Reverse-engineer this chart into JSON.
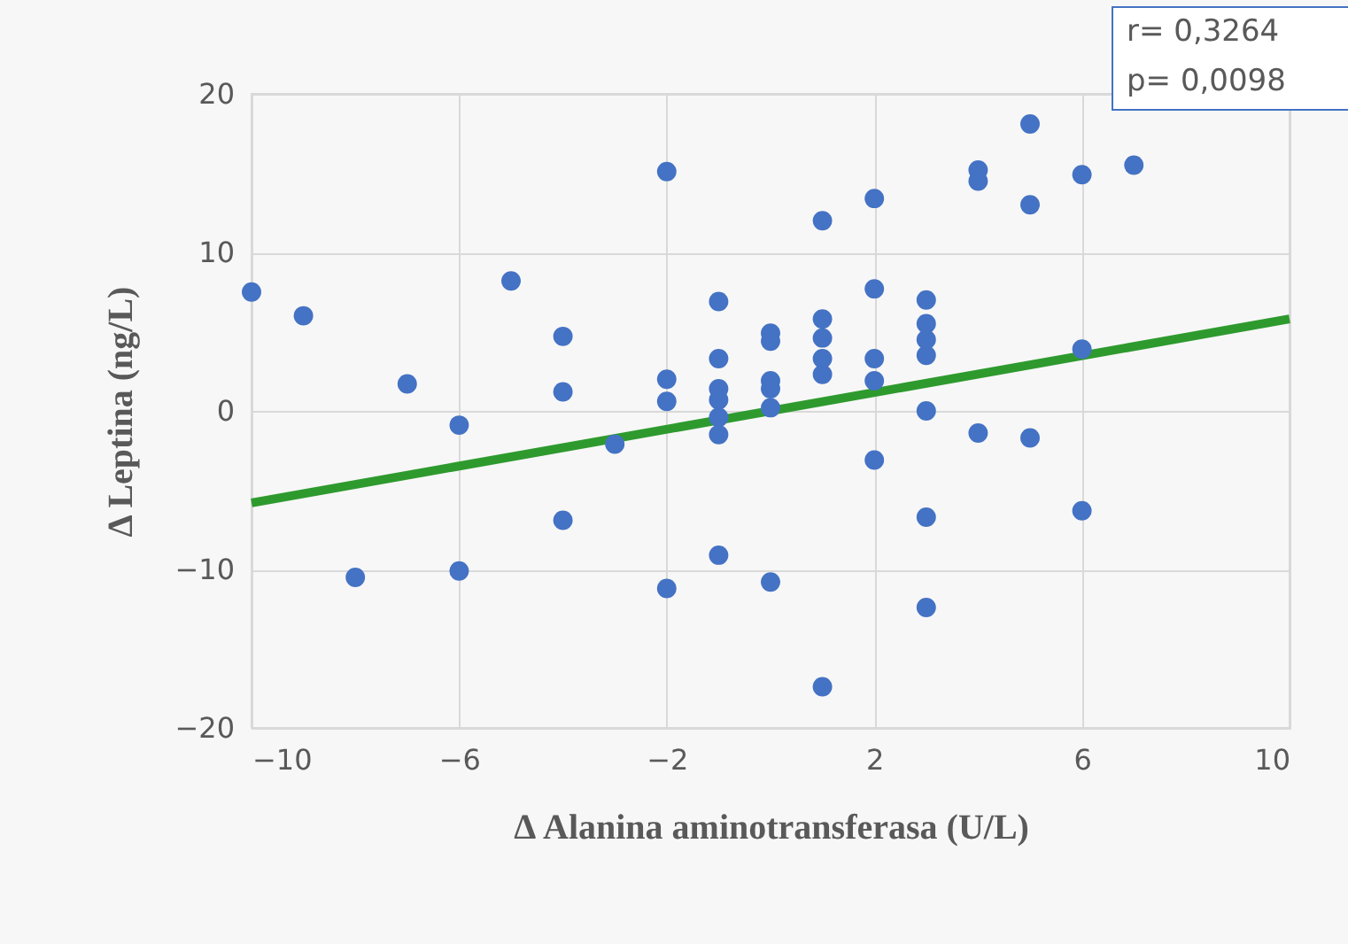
{
  "chart_data": {
    "type": "scatter",
    "xlabel": "Δ Alanina aminotransferasa (U/L)",
    "ylabel": "Δ Leptina (ng/L)",
    "xlim": [
      -10,
      10
    ],
    "xticks": [
      -10,
      -6,
      -2,
      2,
      6,
      10
    ],
    "ylim": [
      -20,
      20
    ],
    "yticks": [
      -20,
      -10,
      0,
      10,
      20
    ],
    "grid": true,
    "marker": "circle",
    "annotations": [
      "r= 0,3264",
      "p= 0,0098"
    ],
    "series": [
      {
        "color": "#4472c4",
        "x": [
          -10,
          -9,
          -7,
          -6,
          -5,
          -4,
          -4,
          -4,
          -3,
          -8,
          -6,
          -2,
          -2,
          -2,
          -2,
          -1,
          -1,
          -1,
          -1,
          -1,
          -1,
          -1,
          0,
          0,
          0,
          0,
          0,
          0,
          1,
          1,
          1,
          1,
          1,
          1,
          2,
          2,
          2,
          2,
          2,
          3,
          3,
          3,
          3,
          3,
          3,
          3,
          4,
          4,
          4,
          5,
          5,
          5,
          6,
          6,
          6,
          7
        ],
        "values": [
          7.5,
          6.0,
          1.7,
          -0.9,
          8.2,
          4.7,
          1.2,
          -6.9,
          -2.1,
          -10.5,
          -10.1,
          15.1,
          2.0,
          0.6,
          -11.2,
          6.9,
          3.3,
          1.4,
          0.7,
          -0.4,
          -1.5,
          -9.1,
          4.9,
          4.4,
          1.9,
          1.4,
          0.2,
          -10.8,
          12.0,
          5.8,
          4.6,
          3.3,
          2.3,
          -17.4,
          13.4,
          7.7,
          3.3,
          1.9,
          -3.1,
          7.0,
          5.5,
          4.5,
          3.5,
          0.0,
          -6.7,
          -12.4,
          15.2,
          14.5,
          -1.4,
          18.1,
          13.0,
          -1.7,
          14.9,
          3.9,
          -6.3,
          15.5
        ]
      },
      {
        "type": "line",
        "color": "#2e9a2e",
        "x": [
          -10,
          10
        ],
        "values": [
          -5.8,
          5.8
        ],
        "marker": "none"
      }
    ]
  }
}
